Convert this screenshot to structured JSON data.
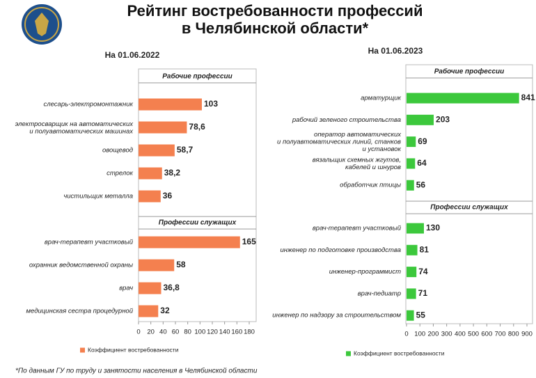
{
  "header": {
    "title_lines": [
      "Рейтинг востребованности профессий",
      "в Челябинской области*"
    ]
  },
  "chart_data": [
    {
      "type": "bar",
      "orientation": "horizontal",
      "title": "На 01.06.2022",
      "groups": [
        {
          "name": "Рабочие профессии",
          "categories": [
            "слесарь-электромонтажник",
            "электросварщик на автоматических\nи полуавтоматических машинах",
            "овощевод",
            "стрелок",
            "чистильщик металла"
          ]
        },
        {
          "name": "Профессии служащих",
          "categories": [
            "врач-терапевт участковый",
            "охранник ведомственной охраны",
            "врач",
            "медицинская сестра процедурной"
          ]
        }
      ],
      "series": [
        {
          "name": "Коэффициент востребованности",
          "color": "#f4804f",
          "values": [
            103,
            78.6,
            58.7,
            38.2,
            36,
            165,
            58,
            36.8,
            32
          ],
          "value_labels": [
            "103",
            "78,6",
            "58,7",
            "38,2",
            "36",
            "165",
            "58",
            "36,8",
            "32"
          ]
        }
      ],
      "xlim": [
        0,
        180
      ],
      "xticks": [
        0,
        20,
        40,
        60,
        80,
        100,
        120,
        140,
        160,
        180
      ],
      "grid": false
    },
    {
      "type": "bar",
      "orientation": "horizontal",
      "title": "На 01.06.2023",
      "groups": [
        {
          "name": "Рабочие профессии",
          "categories": [
            "арматурщик",
            "рабочий зеленого строительства",
            "оператор автоматических\nи полуавтоматических линий, станков\nи установок",
            "вязальщик схемных жгутов,\nкабелей и шнуров",
            "обработчик птицы"
          ]
        },
        {
          "name": "Профессии служащих",
          "categories": [
            "врач-терапевт участковый",
            "инженер по подготовке производства",
            "инженер-программист",
            "врач-педиатр",
            "инженер по надзору за строительством"
          ]
        }
      ],
      "series": [
        {
          "name": "Коэффициент востребованности",
          "color": "#3cc83c",
          "values": [
            841,
            203,
            69,
            64,
            56,
            130,
            81,
            74,
            71,
            55
          ]
        }
      ],
      "xlim": [
        0,
        900
      ],
      "xticks": [
        0,
        100,
        200,
        300,
        400,
        500,
        600,
        700,
        800,
        900
      ],
      "grid": false
    }
  ],
  "footnote": "*По данным ГУ по труду и занятости населения в Челябинской области"
}
